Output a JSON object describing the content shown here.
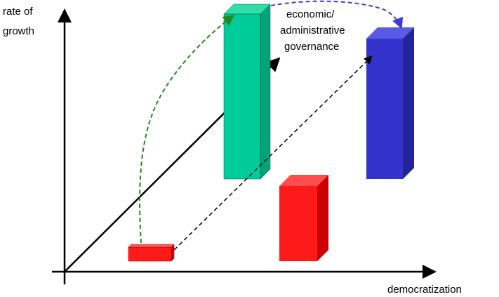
{
  "y_axis_label_lines": [
    "rate of",
    "growth"
  ],
  "x_axis_label": "democratization",
  "third_axis_label_lines": [
    "economic/",
    "administrative",
    "governance"
  ],
  "colors": {
    "axis": "#000000",
    "small_red_bar": "#ff1a1a",
    "green_bar": "#00cc99",
    "blue_bar": "#3333cc",
    "red_bar": "#ff1a1a",
    "green_arrow": "#1f8a1f",
    "blue_arrow": "#3b3bd6",
    "black_dashed_arrow": "#000000"
  }
}
